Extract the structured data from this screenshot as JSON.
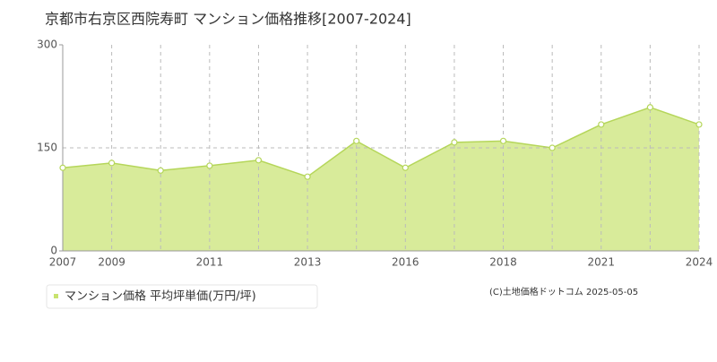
{
  "chart_data": {
    "type": "area",
    "title": "京都市右京区西院寿町 マンション価格推移[2007-2024]",
    "categories": [
      "2007",
      "2009",
      null,
      "2011",
      null,
      "2013",
      null,
      "2016",
      null,
      "2018",
      null,
      "2021",
      null,
      "2024"
    ],
    "series": [
      {
        "name": "マンション価格 平均坪単価(万円/坪)",
        "color": "#c8e36f",
        "values": [
          121,
          128,
          117,
          124,
          132,
          108,
          160,
          121,
          158,
          160,
          150,
          184,
          209,
          184
        ]
      }
    ],
    "ylim": [
      0,
      300
    ],
    "yticks": [
      0,
      150,
      300
    ],
    "grid": true,
    "credit": "(C)土地価格ドットコム 2025-05-05"
  }
}
